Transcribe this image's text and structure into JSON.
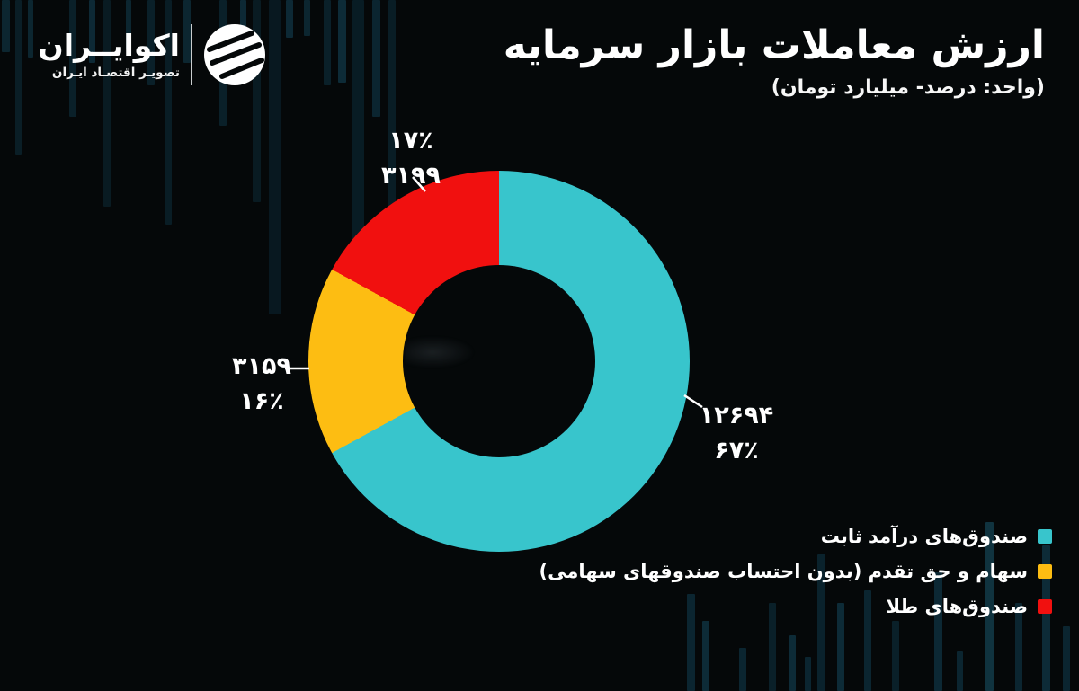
{
  "page": {
    "background": "#050809"
  },
  "logo": {
    "name": "اکوایــران",
    "tagline": "تصویـر اقتصـاد ایـران"
  },
  "header": {
    "title": "ارزش معاملات بازار سرمایه",
    "subtitle": "(واحد: درصد- میلیارد تومان)"
  },
  "chart_data": {
    "type": "pie",
    "donut": true,
    "title": "ارزش معاملات بازار سرمایه",
    "unit_note": "(واحد: درصد- میلیارد تومان)",
    "start_angle_deg": 0,
    "direction": "clockwise",
    "legend_position": "bottom-right",
    "series": [
      {
        "name": "صندوق‌های درآمد ثابت",
        "value": 12694,
        "percent": 67,
        "value_label": "۱۲۶۹۴",
        "percent_label": "۶۷٪",
        "color": "#38c5cc"
      },
      {
        "name": "سهام و حق تقدم (بدون احتساب صندوقهای سهامی)",
        "value": 3159,
        "percent": 16,
        "value_label": "۳۱۵۹",
        "percent_label": "۱۶٪",
        "color": "#fdbd12"
      },
      {
        "name": "صندوق‌های طلا",
        "value": 3199,
        "percent": 17,
        "value_label": "۳۱۹۹",
        "percent_label": "۱۷٪",
        "color": "#f1100f"
      }
    ]
  },
  "colors": {
    "teal": "#38c5cc",
    "yellow": "#fdbd12",
    "red": "#f1100f",
    "text": "#ffffff"
  }
}
